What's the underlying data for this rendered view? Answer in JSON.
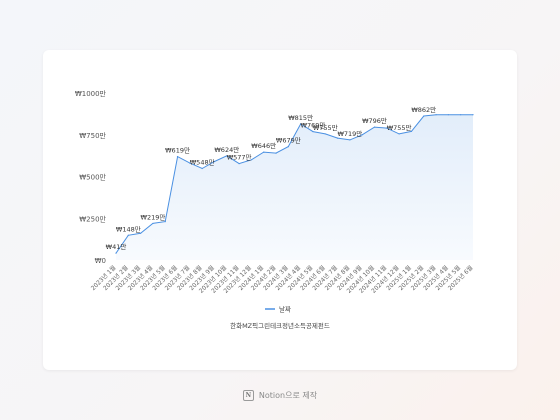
{
  "chart_data": {
    "type": "area",
    "title": "한화MZ픽그린테크정년소득공제펀드",
    "xlabel": "",
    "ylabel": "",
    "ylim": [
      0,
      1000
    ],
    "y_ticks": [
      0,
      250,
      500,
      750,
      1000
    ],
    "y_tick_labels": [
      "₩0",
      "₩250만",
      "₩500만",
      "₩750만",
      "₩1000만"
    ],
    "grid": false,
    "legend_position": "bottom-center",
    "series": [
      {
        "name": "날짜",
        "color": "#4a90e2",
        "x": [
          "2023년 1월",
          "2023년 2월",
          "2023년 3월",
          "2023년 4월",
          "2023년 5월",
          "2023년 6월",
          "2023년 7월",
          "2023년 8월",
          "2023년 9월",
          "2023년 10월",
          "2023년 11월",
          "2023년 12월",
          "2024년 1월",
          "2024년 2월",
          "2024년 3월",
          "2024년 4월",
          "2024년 5월",
          "2024년 6월",
          "2024년 7월",
          "2024년 8월",
          "2024년 9월",
          "2024년 10월",
          "2024년 11월",
          "2024년 12월",
          "2025년 1월",
          "2025년 2월",
          "2025년 3월",
          "2025년 4월",
          "2025년 5월",
          "2025년 6월"
        ],
        "values": [
          41,
          148,
          160,
          219,
          230,
          619,
          580,
          548,
          590,
          624,
          577,
          600,
          646,
          640,
          679,
          815,
          769,
          755,
          730,
          719,
          750,
          796,
          790,
          755,
          770,
          862,
          870,
          870,
          870,
          870
        ]
      }
    ],
    "data_labels": [
      {
        "index": 0,
        "text": "₩41만"
      },
      {
        "index": 1,
        "text": "₩148만"
      },
      {
        "index": 3,
        "text": "₩219만"
      },
      {
        "index": 5,
        "text": "₩619만"
      },
      {
        "index": 7,
        "text": "₩548만"
      },
      {
        "index": 9,
        "text": "₩624만"
      },
      {
        "index": 10,
        "text": "₩577만"
      },
      {
        "index": 12,
        "text": "₩646만"
      },
      {
        "index": 14,
        "text": "₩679만"
      },
      {
        "index": 15,
        "text": "₩815만"
      },
      {
        "index": 16,
        "text": "₩769만"
      },
      {
        "index": 17,
        "text": "₩755만"
      },
      {
        "index": 19,
        "text": "₩719만"
      },
      {
        "index": 21,
        "text": "₩796만"
      },
      {
        "index": 23,
        "text": "₩755만"
      },
      {
        "index": 25,
        "text": "₩862만"
      }
    ]
  },
  "footer": {
    "icon": "notion-icon",
    "icon_glyph": "N",
    "text": "Notion으로 제작"
  }
}
